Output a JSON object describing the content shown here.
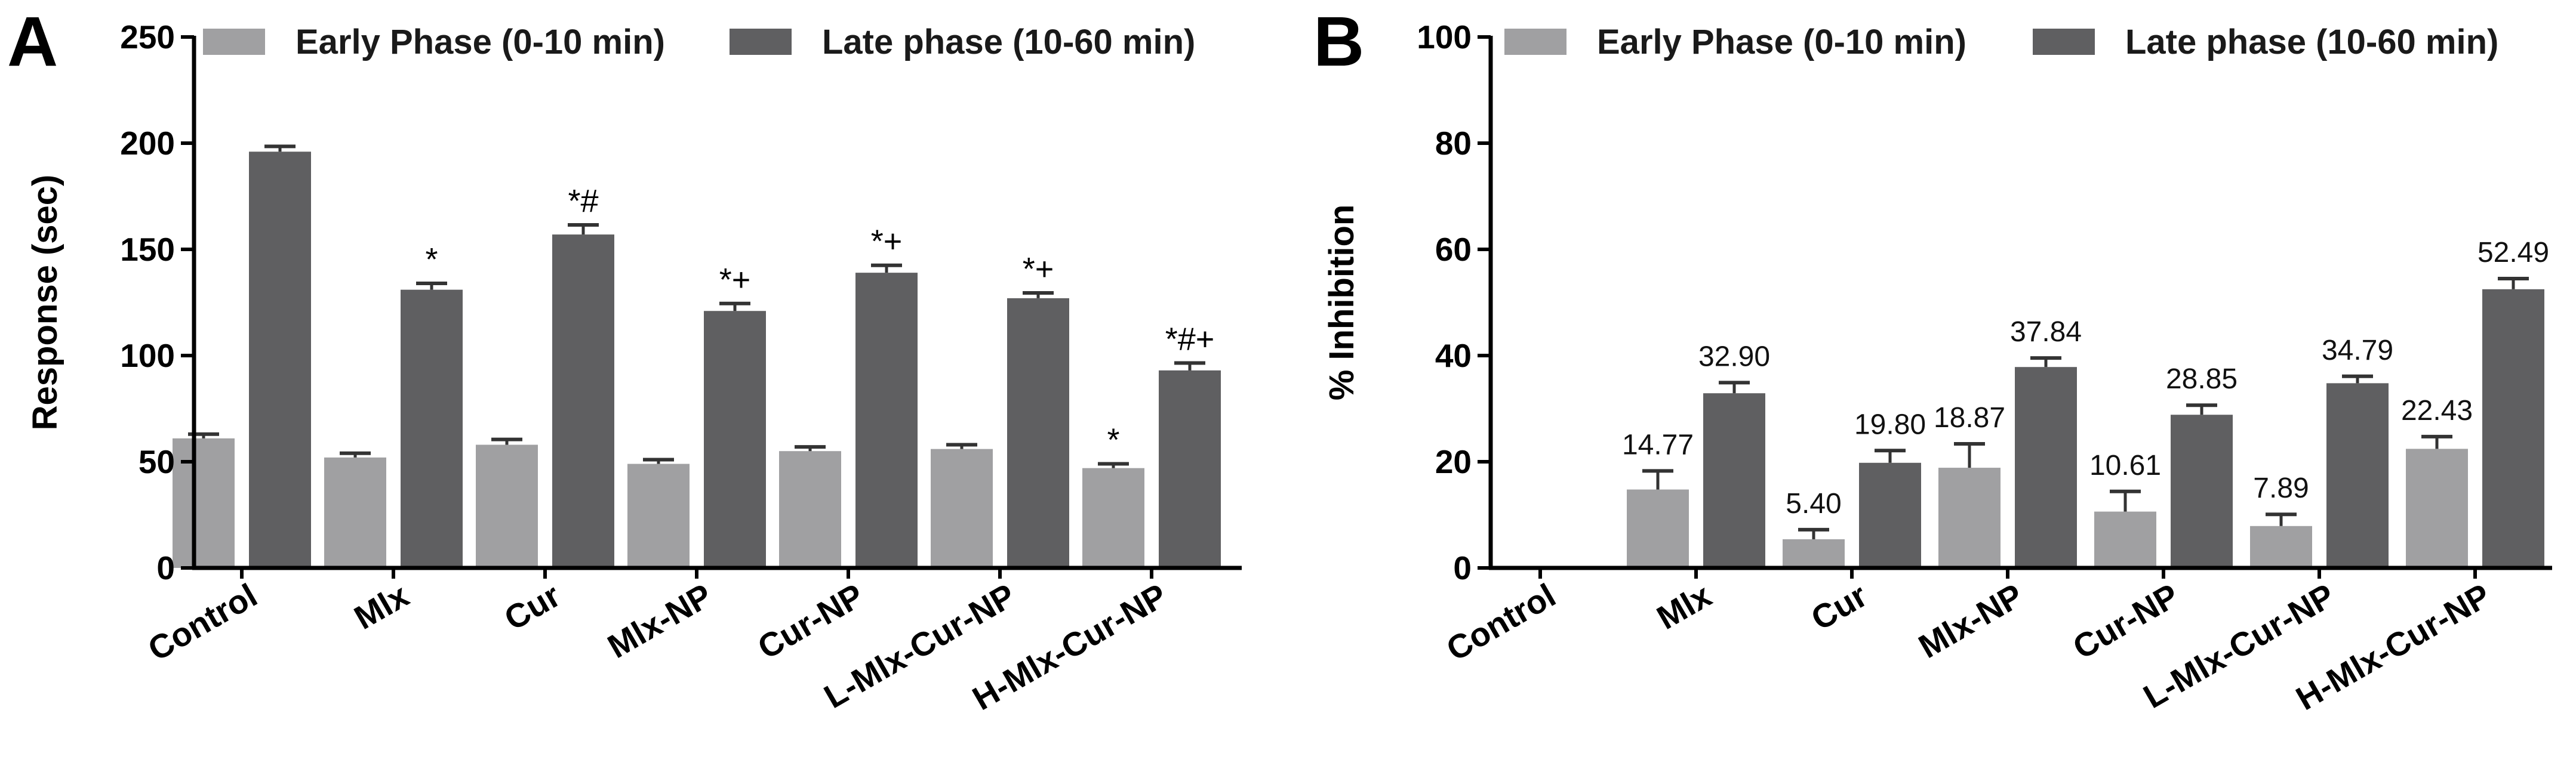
{
  "colors": {
    "early": "#a0a0a2",
    "late": "#5f5f61",
    "axis": "#000000",
    "error": "#333333"
  },
  "legend": {
    "early": "Early Phase (0-10 min)",
    "late": "Late phase (10-60 min)"
  },
  "chart_data": [
    {
      "panel": "A",
      "type": "bar",
      "title": "",
      "xlabel": "",
      "ylabel": "Response (sec)",
      "ylim": [
        0,
        250
      ],
      "yticks": [
        0,
        50,
        100,
        150,
        200,
        250
      ],
      "categories": [
        "Control",
        "Mlx",
        "Cur",
        "Mlx-NP",
        "Cur-NP",
        "L-Mlx-Cur-NP",
        "H-Mlx-Cur-NP"
      ],
      "series": [
        {
          "name": "Early Phase (0-10 min)",
          "values": [
            61,
            52,
            58,
            49,
            55,
            56,
            47
          ],
          "errors": [
            2,
            2,
            2.5,
            2,
            2,
            2,
            2
          ]
        },
        {
          "name": "Late phase (10-60 min)",
          "values": [
            196,
            131,
            157,
            121,
            139,
            127,
            93
          ],
          "errors": [
            2.5,
            3,
            4.5,
            3.5,
            3.5,
            2.5,
            3.5
          ]
        }
      ],
      "annotations": [
        {
          "category": "H-Mlx-Cur-NP",
          "series": 0,
          "text": "*"
        },
        {
          "category": "Mlx",
          "series": 1,
          "text": "*"
        },
        {
          "category": "Cur",
          "series": 1,
          "text": "*#"
        },
        {
          "category": "Mlx-NP",
          "series": 1,
          "text": "*+"
        },
        {
          "category": "Cur-NP",
          "series": 1,
          "text": "*+"
        },
        {
          "category": "L-Mlx-Cur-NP",
          "series": 1,
          "text": "*+"
        },
        {
          "category": "H-Mlx-Cur-NP",
          "series": 1,
          "text": "*#+"
        }
      ]
    },
    {
      "panel": "B",
      "type": "bar",
      "title": "",
      "xlabel": "",
      "ylabel": "% Inhibition",
      "ylim": [
        0,
        100
      ],
      "yticks": [
        0,
        20,
        40,
        60,
        80,
        100
      ],
      "categories": [
        "Control",
        "Mlx",
        "Cur",
        "Mlx-NP",
        "Cur-NP",
        "L-Mlx-Cur-NP",
        "H-Mlx-Cur-NP"
      ],
      "series": [
        {
          "name": "Early Phase (0-10 min)",
          "values": [
            0,
            14.77,
            5.4,
            18.87,
            10.61,
            7.89,
            22.43
          ],
          "errors": [
            0,
            3.5,
            1.8,
            4.5,
            3.8,
            2.2,
            2.3
          ],
          "labels": [
            "",
            "14.77",
            "5.40",
            "18.87",
            "10.61",
            "7.89",
            "22.43"
          ]
        },
        {
          "name": "Late phase (10-60 min)",
          "values": [
            0,
            32.9,
            19.8,
            37.84,
            28.85,
            34.79,
            52.49
          ],
          "errors": [
            0,
            2.0,
            2.3,
            1.7,
            1.8,
            1.3,
            2.0
          ],
          "labels": [
            "",
            "32.90",
            "19.80",
            "37.84",
            "28.85",
            "34.79",
            "52.49"
          ]
        }
      ]
    }
  ]
}
